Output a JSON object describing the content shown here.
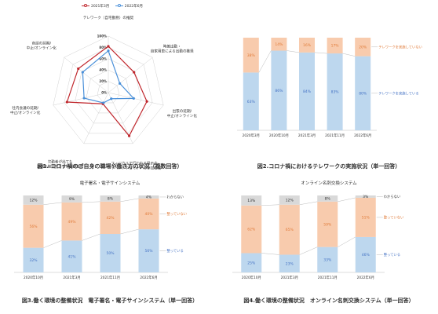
{
  "chart_data": [
    {
      "type": "radar",
      "caption": "図1. コロナ禍のご自身の職場や働き方の状況（複数回答）",
      "axes": [
        {
          "label": [
            "テレワーク（自宅勤務）の推奨"
          ]
        },
        {
          "label": [
            "時差出勤・",
            "自家用車による出勤の推奨"
          ]
        },
        {
          "label": [
            "出張の延期/",
            "中止/オンライン化"
          ]
        },
        {
          "label": [
            "フィジカルで行われる展示会、",
            "イベントやセミナーの参加自粛"
          ]
        },
        {
          "label": [
            "欠勤者が出ても",
            "業務を継続できる体制の整備"
          ]
        },
        {
          "label": [
            "社内会議の延期/",
            "中止/オンライン化"
          ]
        },
        {
          "label": [
            "商談の延期/",
            "中止/オンライン化"
          ]
        }
      ],
      "rlim": [
        0,
        100
      ],
      "ticks": [
        "0%",
        "20%",
        "40%",
        "60%",
        "80%",
        "100%"
      ],
      "series": [
        {
          "name": "2021年3月",
          "color": "#c0272d",
          "values": [
            82,
            58,
            70,
            85,
            22,
            75,
            68
          ]
        },
        {
          "name": "2022年6月",
          "color": "#4a90d9",
          "values": [
            74,
            26,
            46,
            12,
            20,
            44,
            58
          ]
        }
      ]
    },
    {
      "type": "stacked_bar",
      "title": "",
      "caption": "図2.コロナ禍におけるテレワークの実施状況（単一回答）",
      "categories": [
        "2020年3月",
        "2020年10月",
        "2021年3月",
        "2021年11月",
        "2022年6月"
      ],
      "series": [
        {
          "name": "テレワークを実施している",
          "color": "#bdd7ee",
          "label_color": "#4472c4",
          "values": [
            63,
            86,
            84,
            83,
            80
          ]
        },
        {
          "name": "テレワークを実施していない",
          "color": "#f8cbad",
          "label_color": "#e07b39",
          "values": [
            38,
            14,
            16,
            17,
            20
          ]
        }
      ],
      "value_labels": [
        [
          "63%",
          "86%",
          "84%",
          "83%",
          "80%"
        ],
        [
          "38%",
          "14%",
          "16%",
          "17%",
          "20%"
        ]
      ]
    },
    {
      "type": "stacked_bar",
      "title": "電子署名・電子サインシステム",
      "caption": "図3.働く環境の整備状況　電子署名・電子サインシステム（単一回答）",
      "categories": [
        "2020年10月",
        "2021年3月",
        "2021年11月",
        "2022年6月"
      ],
      "series": [
        {
          "name": "整っている",
          "color": "#bdd7ee",
          "label_color": "#4472c4",
          "values": [
            32,
            41,
            50,
            56
          ]
        },
        {
          "name": "整っていない",
          "color": "#f8cbad",
          "label_color": "#e07b39",
          "values": [
            56,
            49,
            42,
            40
          ]
        },
        {
          "name": "わからない",
          "color": "#d9d9d9",
          "label_color": "#333333",
          "values": [
            12,
            9,
            8,
            4
          ]
        }
      ],
      "value_labels": [
        [
          "32%",
          "41%",
          "50%",
          "56%"
        ],
        [
          "56%",
          "49%",
          "42%",
          "40%"
        ],
        [
          "12%",
          "9%",
          "8%",
          "4%"
        ]
      ]
    },
    {
      "type": "stacked_bar",
      "title": "オンライン名刺交換システム",
      "caption": "図4.働く環境の整備状況　オンライン名刺交換システム（単一回答）",
      "categories": [
        "2020年10月",
        "2021年3月",
        "2021年11月",
        "2022年6月"
      ],
      "series": [
        {
          "name": "整っている",
          "color": "#bdd7ee",
          "label_color": "#4472c4",
          "values": [
            25,
            23,
            33,
            46
          ]
        },
        {
          "name": "整っていない",
          "color": "#f8cbad",
          "label_color": "#e07b39",
          "values": [
            62,
            65,
            59,
            51
          ]
        },
        {
          "name": "わからない",
          "color": "#d9d9d9",
          "label_color": "#333333",
          "values": [
            13,
            12,
            8,
            3
          ]
        }
      ],
      "value_labels": [
        [
          "25%",
          "23%",
          "33%",
          "46%"
        ],
        [
          "62%",
          "65%",
          "59%",
          "51%"
        ],
        [
          "13%",
          "12%",
          "8%",
          "3%"
        ]
      ]
    }
  ]
}
